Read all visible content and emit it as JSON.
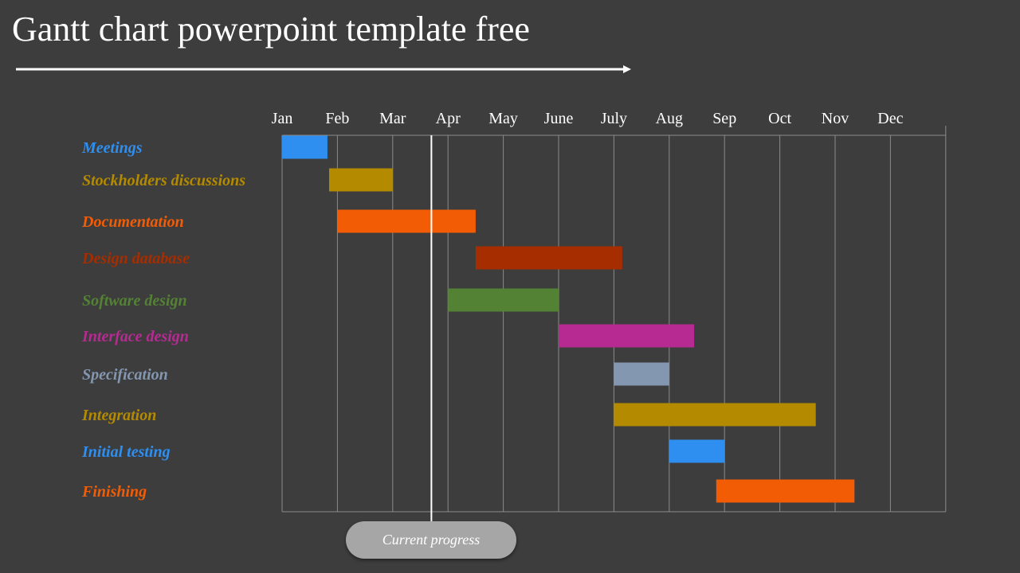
{
  "title": "Gantt chart powerpoint template free",
  "progress_label": "Current progress",
  "chart_data": {
    "type": "gantt",
    "months": [
      "Jan",
      "Feb",
      "Mar",
      "Apr",
      "May",
      "June",
      "July",
      "Aug",
      "Sep",
      "Oct",
      "Nov",
      "Dec"
    ],
    "x_unit": "month index (0 = start of Jan, 12 = end of Dec)",
    "xlim": [
      0,
      12
    ],
    "grid": true,
    "current_progress": 2.7,
    "tasks": [
      {
        "name": "Meetings",
        "start": 0.0,
        "end": 0.82,
        "color": "#2e8ff0"
      },
      {
        "name": "Stockholders  discussions",
        "start": 0.85,
        "end": 2.0,
        "color": "#b38a00"
      },
      {
        "name": "Documentation",
        "start": 1.0,
        "end": 3.5,
        "color": "#f25c05"
      },
      {
        "name": "Design database",
        "start": 3.5,
        "end": 6.15,
        "color": "#a52d00"
      },
      {
        "name": "Software design",
        "start": 3.0,
        "end": 5.0,
        "color": "#548235"
      },
      {
        "name": "Interface design",
        "start": 5.0,
        "end": 7.45,
        "color": "#b62a92"
      },
      {
        "name": "Specification",
        "start": 6.0,
        "end": 7.0,
        "color": "#8497b0"
      },
      {
        "name": "Integration",
        "start": 6.0,
        "end": 9.65,
        "color": "#b38a00"
      },
      {
        "name": "Initial testing",
        "start": 7.0,
        "end": 8.0,
        "color": "#2e8ff0"
      },
      {
        "name": "Finishing",
        "start": 7.85,
        "end": 10.35,
        "color": "#f25c05"
      }
    ]
  }
}
